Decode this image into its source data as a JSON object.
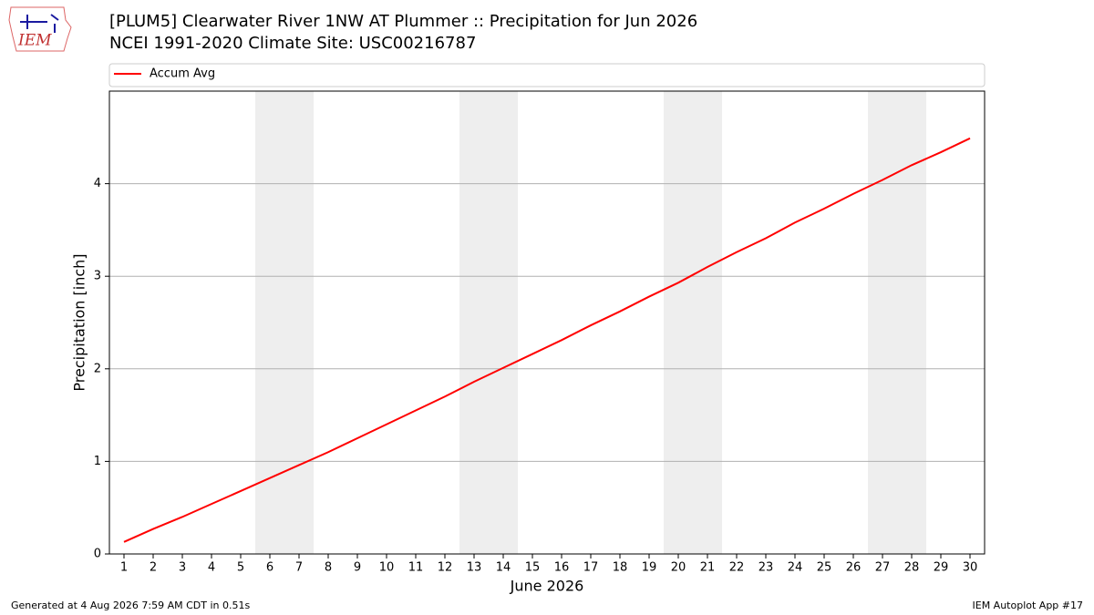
{
  "chart_data": {
    "type": "line",
    "title": "[PLUM5] Clearwater River 1NW AT Plummer :: Precipitation for Jun 2026",
    "subtitle": "NCEI 1991-2020 Climate Site: USC00216787",
    "x_label": "June 2026",
    "y_label": "Precipitation [inch]",
    "x": [
      1,
      2,
      3,
      4,
      5,
      6,
      7,
      8,
      9,
      10,
      11,
      12,
      13,
      14,
      15,
      16,
      17,
      18,
      19,
      20,
      21,
      22,
      23,
      24,
      25,
      26,
      27,
      28,
      29,
      30
    ],
    "series": [
      {
        "name": "Accum Avg",
        "color": "#ff0000",
        "values": [
          0.13,
          0.27,
          0.4,
          0.54,
          0.68,
          0.82,
          0.96,
          1.1,
          1.25,
          1.4,
          1.55,
          1.7,
          1.86,
          2.01,
          2.16,
          2.31,
          2.47,
          2.62,
          2.78,
          2.93,
          3.1,
          3.26,
          3.41,
          3.58,
          3.73,
          3.89,
          4.04,
          4.2,
          4.34,
          4.49
        ]
      }
    ],
    "xlim": [
      0.5,
      30.5
    ],
    "xticks": [
      1,
      2,
      3,
      4,
      5,
      6,
      7,
      8,
      9,
      10,
      11,
      12,
      13,
      14,
      15,
      16,
      17,
      18,
      19,
      20,
      21,
      22,
      23,
      24,
      25,
      26,
      27,
      28,
      29,
      30
    ],
    "ylim": [
      0,
      5
    ],
    "yticks": [
      0,
      1,
      2,
      3,
      4
    ],
    "grid": true,
    "legend": "top",
    "shaded_spans": [
      [
        5.5,
        7.5
      ],
      [
        12.5,
        14.5
      ],
      [
        19.5,
        21.5
      ],
      [
        26.5,
        28.5
      ]
    ],
    "shade_color": "#eeeeee"
  },
  "footer": {
    "left": "Generated at 4 Aug 2026 7:59 AM CDT in 0.51s",
    "right": "IEM Autoplot App #17"
  },
  "logo": {
    "text": "IEM"
  }
}
